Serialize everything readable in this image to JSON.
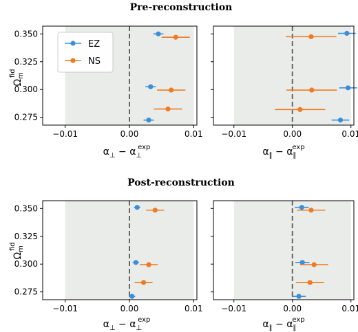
{
  "titles": [
    "Pre-reconstruction",
    "Post-reconstruction"
  ],
  "legend": [
    "EZ",
    "NS"
  ],
  "colors": {
    "EZ": "#3b8fd9",
    "NS": "#f07a22",
    "shade": "#eaece9",
    "zero_line": "#666666"
  },
  "ylabel": {
    "base": "Ω",
    "sub": "m",
    "sup": "fid"
  },
  "xlabels": {
    "perp": {
      "a": "α",
      "sub_a": "⊥",
      "minus": " − α",
      "sub_b": "⊥",
      "sup_b": "exp"
    },
    "par": {
      "a": "α",
      "sub_a": "∥",
      "minus": " − α",
      "sub_b": "∥",
      "sup_b": "exp"
    }
  },
  "xticks": [
    "−0.01",
    "0.00",
    "0.01"
  ],
  "yticks": [
    "0.350",
    "0.325",
    "0.300",
    "0.275"
  ],
  "chart_data": [
    {
      "type": "scatter",
      "panel": "pre-perp",
      "title": "Pre-reconstruction",
      "xlim": [
        -0.0135,
        0.0105
      ],
      "ylim": [
        0.268,
        0.357
      ],
      "shaded_band": [
        -0.01,
        0.01
      ],
      "vline": 0.0,
      "series": [
        {
          "name": "EZ",
          "points": [
            {
              "y": 0.35,
              "x": 0.0045,
              "err": 0.0008
            },
            {
              "y": 0.3025,
              "x": 0.0033,
              "err": 0.0008
            },
            {
              "y": 0.2725,
              "x": 0.003,
              "err": 0.0008
            }
          ]
        },
        {
          "name": "NS",
          "points": [
            {
              "y": 0.347,
              "x": 0.0072,
              "err": 0.0022
            },
            {
              "y": 0.2995,
              "x": 0.0065,
              "err": 0.0022
            },
            {
              "y": 0.2825,
              "x": 0.006,
              "err": 0.0022
            }
          ]
        }
      ]
    },
    {
      "type": "scatter",
      "panel": "pre-par",
      "xlim": [
        -0.0135,
        0.0105
      ],
      "ylim": [
        0.268,
        0.357
      ],
      "shaded_band": [
        -0.01,
        0.01
      ],
      "vline": 0.0,
      "series": [
        {
          "name": "EZ",
          "points": [
            {
              "y": 0.3505,
              "x": 0.0093,
              "err": 0.0015
            },
            {
              "y": 0.3015,
              "x": 0.0095,
              "err": 0.0015
            },
            {
              "y": 0.2725,
              "x": 0.0082,
              "err": 0.0015
            }
          ]
        },
        {
          "name": "NS",
          "points": [
            {
              "y": 0.3475,
              "x": 0.0032,
              "err": 0.0043
            },
            {
              "y": 0.2995,
              "x": 0.0033,
              "err": 0.0043
            },
            {
              "y": 0.282,
              "x": 0.0013,
              "err": 0.0043
            }
          ]
        }
      ]
    },
    {
      "type": "scatter",
      "panel": "post-perp",
      "title": "Post-reconstruction",
      "xlim": [
        -0.0135,
        0.0105
      ],
      "ylim": [
        0.268,
        0.357
      ],
      "shaded_band": [
        -0.01,
        0.01
      ],
      "vline": 0.0,
      "series": [
        {
          "name": "EZ",
          "points": [
            {
              "y": 0.351,
              "x": 0.0012,
              "err": 0.0005
            },
            {
              "y": 0.3015,
              "x": 0.001,
              "err": 0.0005
            },
            {
              "y": 0.271,
              "x": 0.0004,
              "err": 0.0005
            }
          ]
        },
        {
          "name": "NS",
          "points": [
            {
              "y": 0.3485,
              "x": 0.004,
              "err": 0.0014
            },
            {
              "y": 0.2995,
              "x": 0.003,
              "err": 0.0014
            },
            {
              "y": 0.2835,
              "x": 0.0022,
              "err": 0.0014
            }
          ]
        }
      ]
    },
    {
      "type": "scatter",
      "panel": "post-par",
      "xlim": [
        -0.0135,
        0.0105
      ],
      "ylim": [
        0.268,
        0.357
      ],
      "shaded_band": [
        -0.01,
        0.01
      ],
      "vline": 0.0,
      "series": [
        {
          "name": "EZ",
          "points": [
            {
              "y": 0.351,
              "x": 0.0016,
              "err": 0.0012
            },
            {
              "y": 0.3015,
              "x": 0.0017,
              "err": 0.0012
            },
            {
              "y": 0.271,
              "x": 0.0011,
              "err": 0.0012
            }
          ]
        },
        {
          "name": "NS",
          "points": [
            {
              "y": 0.3485,
              "x": 0.0032,
              "err": 0.0024
            },
            {
              "y": 0.2995,
              "x": 0.0037,
              "err": 0.0024
            },
            {
              "y": 0.2835,
              "x": 0.003,
              "err": 0.0024
            }
          ]
        }
      ]
    }
  ]
}
